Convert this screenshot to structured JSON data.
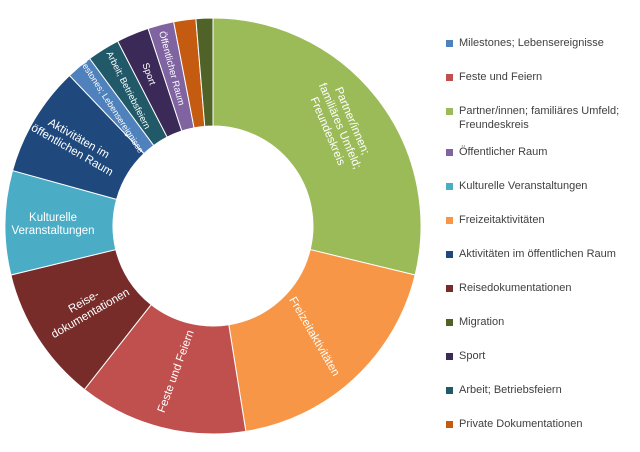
{
  "chart_data": {
    "type": "pie",
    "donut": true,
    "segments": [
      {
        "label": "Partner/innen; familiäres Umfeld; Freundeskreis",
        "value": 28.5,
        "color": "#9bbb59",
        "slice_label_lines": [
          "Partner/innen;",
          "familiäres Umfeld;",
          "Freundeskreis"
        ]
      },
      {
        "label": "Freizeitaktivitäten",
        "value": 18.5,
        "color": "#f79646",
        "slice_label_lines": [
          "Freizeitaktivitäten"
        ]
      },
      {
        "label": "Feste und Feiern",
        "value": 13.0,
        "color": "#c0504d",
        "slice_label_lines": [
          "Feste und Feiern"
        ]
      },
      {
        "label": "Reisedokumentationen",
        "value": 10.5,
        "color": "#772c2a",
        "slice_label_lines": [
          "Reise-",
          "dokumentationen"
        ]
      },
      {
        "label": "Kulturelle Veranstaltungen",
        "value": 8.0,
        "color": "#4bacc6",
        "slice_label_lines": [
          "Kulturelle",
          "Veranstaltungen"
        ]
      },
      {
        "label": "Aktivitäten im öffentlichen Raum",
        "value": 8.5,
        "color": "#1f497d",
        "slice_label_lines": [
          "Aktivitäten im",
          "öffentlichen Raum"
        ]
      },
      {
        "label": "Milestones; Lebensereignisse",
        "value": 2.0,
        "color": "#4f81bd",
        "slice_label_lines": [
          "Milestones; Lebensereignisse"
        ]
      },
      {
        "label": "Arbeit; Betriebsfeiern",
        "value": 2.5,
        "color": "#215968",
        "slice_label_lines": [
          "Arbeit; Betriebsfeiern"
        ]
      },
      {
        "label": "Sport",
        "value": 2.5,
        "color": "#3b2a57",
        "slice_label_lines": [
          "Sport"
        ]
      },
      {
        "label": "Öffentlicher Raum",
        "value": 2.0,
        "color": "#8064a2",
        "slice_label_lines": [
          "Öffentlicher Raum"
        ]
      },
      {
        "label": "Private Dokumentationen",
        "value": 1.7,
        "color": "#c55a11",
        "slice_label_lines": []
      },
      {
        "label": "Migration",
        "value": 1.3,
        "color": "#4f6228",
        "slice_label_lines": []
      }
    ],
    "legend": {
      "placement": "right",
      "entries": [
        {
          "label": "Milestones; Lebensereignisse",
          "color": "#4f81bd"
        },
        {
          "label": "Feste und Feiern",
          "color": "#c0504d"
        },
        {
          "label": "Partner/innen; familiäres Umfeld; Freundeskreis",
          "color": "#9bbb59",
          "lines": [
            "Partner/innen; familiäres Umfeld;",
            "Freundeskreis"
          ]
        },
        {
          "label": "Öffentlicher Raum",
          "color": "#8064a2"
        },
        {
          "label": "Kulturelle Veranstaltungen",
          "color": "#4bacc6"
        },
        {
          "label": "Freizeitaktivitäten",
          "color": "#f79646"
        },
        {
          "label": "Aktivitäten im öffentlichen Raum",
          "color": "#1f497d"
        },
        {
          "label": "Reisedokumentationen",
          "color": "#772c2a"
        },
        {
          "label": "Migration",
          "color": "#4f6228"
        },
        {
          "label": "Sport",
          "color": "#3b2a57"
        },
        {
          "label": "Arbeit; Betriebsfeiern",
          "color": "#215968"
        },
        {
          "label": "Private Dokumentationen",
          "color": "#c55a11"
        }
      ]
    }
  }
}
